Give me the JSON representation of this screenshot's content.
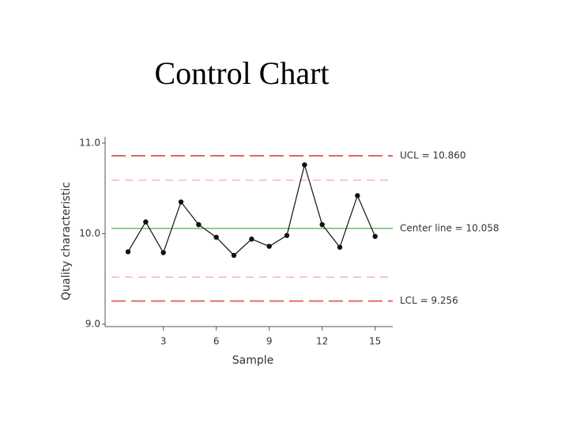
{
  "chart_data": {
    "type": "line",
    "title": "Control Chart",
    "x_label": "Sample",
    "y_label": "Quality characteristic",
    "x": [
      1,
      2,
      3,
      4,
      5,
      6,
      7,
      8,
      9,
      10,
      11,
      12,
      13,
      14,
      15
    ],
    "values": [
      9.8,
      10.13,
      9.79,
      10.35,
      10.1,
      9.96,
      9.76,
      9.94,
      9.86,
      9.98,
      10.76,
      10.1,
      9.85,
      10.42,
      9.97
    ],
    "color": "#111111",
    "xlim": [
      -0.3,
      16
    ],
    "xticks": [
      3,
      6,
      9,
      12,
      15
    ],
    "ylim": [
      9,
      11
    ],
    "yticks": [
      {
        "value": 9,
        "label": "9.0"
      },
      {
        "value": 10,
        "label": "10.0"
      },
      {
        "value": 11,
        "label": "11.0"
      }
    ],
    "limits": [
      {
        "label": "UCL = 10.860",
        "value": 10.86,
        "color": "#d9534f",
        "dashed": true
      },
      {
        "label": "Center line = 10.058",
        "value": 10.058,
        "color": "#4caf50",
        "dashed": false
      },
      {
        "label": "LCL = 9.256",
        "value": 9.256,
        "color": "#e06666",
        "dashed": true
      }
    ],
    "warning_limits": {
      "values": [
        10.59,
        9.52
      ],
      "color": "#f0a0a0"
    }
  }
}
